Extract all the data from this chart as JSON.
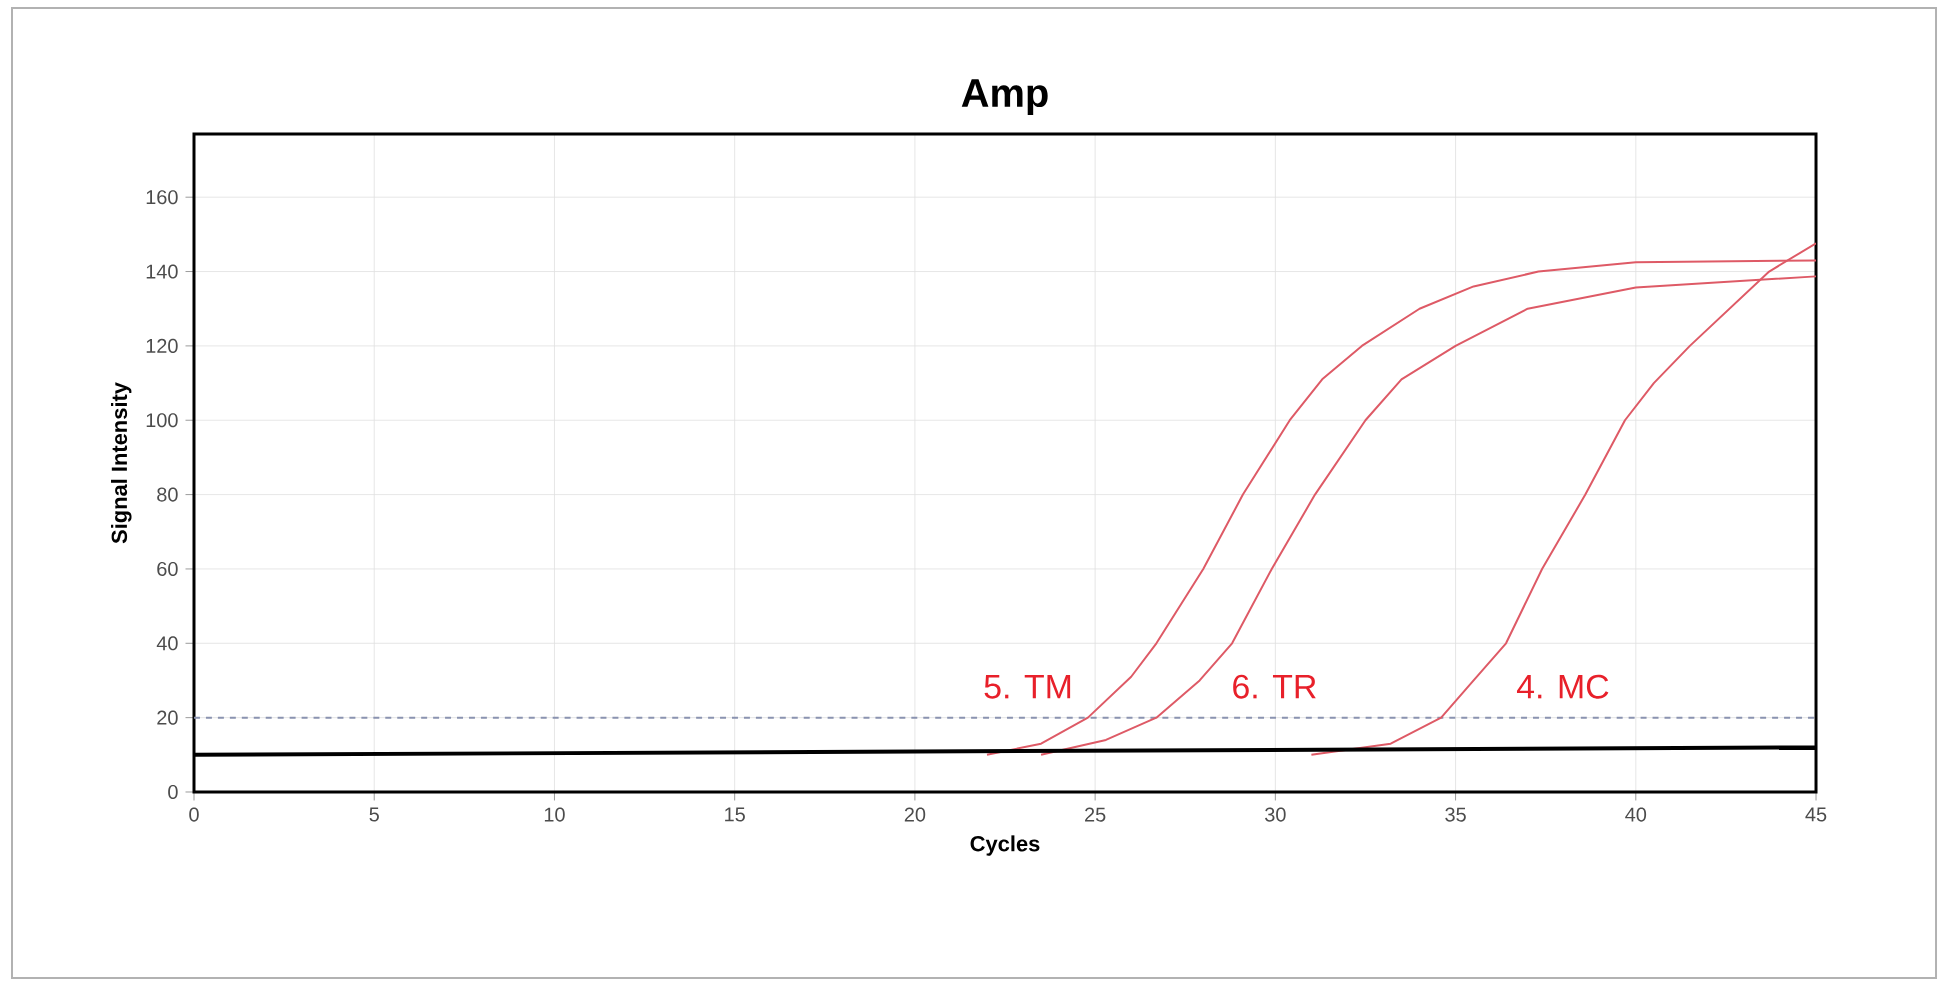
{
  "chart_data": {
    "type": "line",
    "title": "Amp",
    "xlabel": "Cycles",
    "ylabel": "Signal Intensity",
    "xlim": [
      0,
      45
    ],
    "ylim": [
      0,
      177
    ],
    "xticks": [
      0,
      5,
      10,
      15,
      20,
      25,
      30,
      35,
      40,
      45
    ],
    "yticks": [
      0,
      20,
      40,
      60,
      80,
      100,
      120,
      140,
      160
    ],
    "grid": true,
    "legend": false,
    "marker": "none",
    "line_style": "solid",
    "ref_lines": [
      {
        "axis": "y",
        "value": 20,
        "color": "#8a93b0",
        "line_style": "dashed"
      }
    ],
    "series": [
      {
        "name": "5. TM",
        "color": "#de5a66",
        "x": [
          22,
          23.5,
          24.8,
          26,
          26.7,
          28,
          29.1,
          30.4,
          31.3,
          32.4,
          34,
          35.5,
          37.3,
          40,
          45
        ],
        "values": [
          10,
          13,
          20,
          31,
          40,
          60,
          80,
          100,
          111,
          120,
          130,
          136,
          140,
          142.5,
          143
        ]
      },
      {
        "name": "6. TR",
        "color": "#de5a66",
        "x": [
          23.5,
          25.3,
          26.7,
          27.9,
          28.8,
          29.9,
          31.1,
          32.5,
          33.5,
          35,
          37,
          40,
          45
        ],
        "values": [
          10,
          14,
          20,
          30,
          40,
          60,
          80,
          100,
          111,
          120,
          130,
          135.7,
          138.7
        ]
      },
      {
        "name": "4. MC",
        "color": "#de5a66",
        "x": [
          31,
          33.2,
          34.6,
          35.5,
          36.4,
          37.4,
          38.6,
          39.7,
          40.5,
          41.5,
          43.7,
          45
        ],
        "values": [
          10,
          13,
          20,
          30,
          40,
          60,
          80,
          100,
          110,
          120,
          140,
          147.6
        ]
      },
      {
        "color": "#000000",
        "x": [
          0,
          45
        ],
        "values": [
          10,
          12
        ]
      }
    ]
  }
}
